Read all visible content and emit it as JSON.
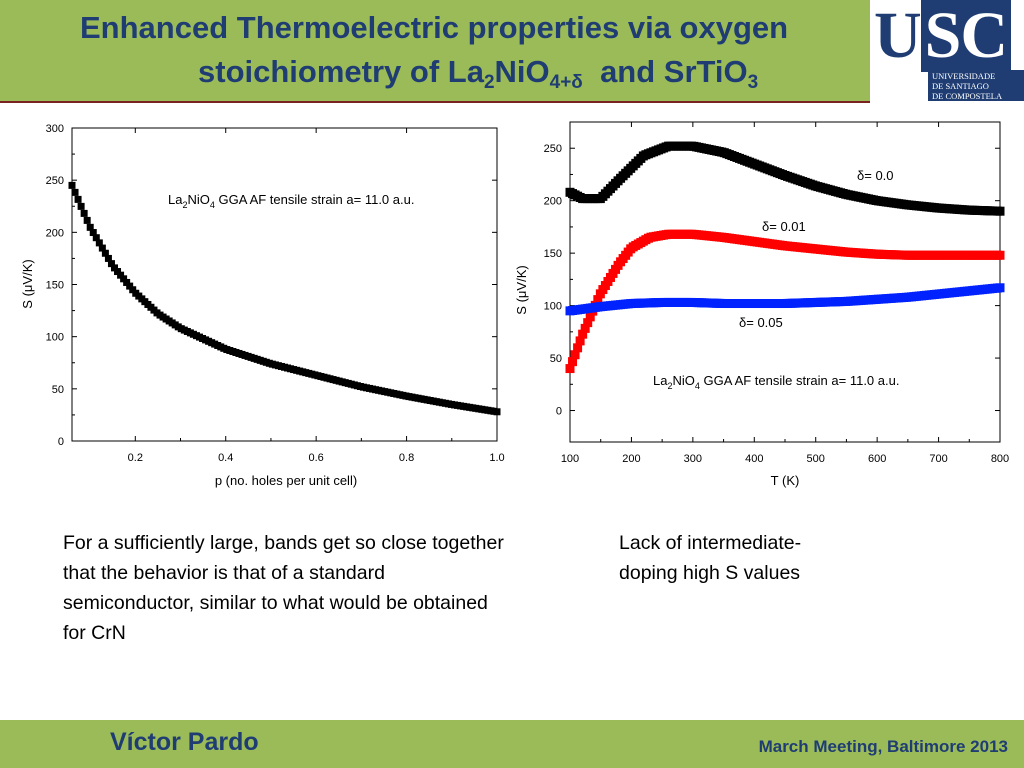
{
  "slide": {
    "title_line1": "Enhanced Thermoelectric properties via oxygen",
    "title_line2_pre": "stoichiometry of La",
    "title_sub2": "2",
    "title_mid": "NiO",
    "title_sub_delta": "4+δ",
    "title_and": "and SrTiO",
    "title_sub3": "3",
    "note_left": "For a sufficiently large, bands get so close together that the behavior is that of a standard semiconductor, similar to what would be obtained for CrN",
    "note_right": "Lack of intermediate-doping high S values",
    "author": "Víctor Pardo",
    "venue": "March Meeting, Baltimore 2013"
  },
  "logo": {
    "letters_u": "U",
    "letters_sc": "SC",
    "line1": "UNIVERSIDADE",
    "line2": "DE SANTIAGO",
    "line3": "DE COMPOSTELA"
  },
  "colors": {
    "header_bg": "#9bbb59",
    "title_blue": "#1f3d73",
    "series_black": "#000000",
    "series_red": "#ff0000",
    "series_blue": "#0022ff"
  },
  "chart_data": [
    {
      "type": "scatter",
      "xlabel": "p (no. holes per unit cell)",
      "ylabel": "S (μV/K)",
      "xlim": [
        0.06,
        1.0
      ],
      "ylim": [
        0,
        300
      ],
      "xticks": [
        0.2,
        0.4,
        0.6,
        0.8,
        1.0
      ],
      "xtick_labels": [
        "0.2",
        "0.4",
        "0.6",
        "0.8",
        "1.0"
      ],
      "yticks": [
        0,
        50,
        100,
        150,
        200,
        250,
        300
      ],
      "ytick_labels": [
        "0",
        "50",
        "100",
        "150",
        "200",
        "250",
        "300"
      ],
      "annotation": {
        "pre": "La",
        "s1": "2",
        "mid": "NiO",
        "s2": "4",
        "post": " GGA AF tensile strain a= 11.0 a.u."
      },
      "series": [
        {
          "color": "#000000",
          "x": [
            0.06,
            0.1,
            0.15,
            0.2,
            0.25,
            0.3,
            0.4,
            0.5,
            0.6,
            0.7,
            0.8,
            0.9,
            1.0
          ],
          "y": [
            245,
            205,
            168,
            142,
            122,
            108,
            88,
            74,
            63,
            52,
            43,
            35,
            28
          ]
        }
      ]
    },
    {
      "type": "scatter",
      "xlabel": "T (K)",
      "ylabel": "S (μV/K)",
      "xlim": [
        100,
        800
      ],
      "ylim": [
        -30,
        275
      ],
      "xticks": [
        100,
        200,
        300,
        400,
        500,
        600,
        700,
        800
      ],
      "xtick_labels": [
        "100",
        "200",
        "300",
        "400",
        "500",
        "600",
        "700",
        "800"
      ],
      "yticks": [
        0,
        50,
        100,
        150,
        200,
        250
      ],
      "ytick_labels": [
        "0",
        "50",
        "100",
        "150",
        "200",
        "250"
      ],
      "annotation": {
        "pre": "La",
        "s1": "2",
        "mid": "NiO",
        "s2": "4",
        "post": " GGA AF tensile strain a= 11.0 a.u."
      },
      "series": [
        {
          "name": "δ= 0.0",
          "color": "#000000",
          "x": [
            100,
            120,
            150,
            180,
            220,
            260,
            300,
            350,
            400,
            450,
            500,
            550,
            600,
            650,
            700,
            750,
            800
          ],
          "y": [
            208,
            202,
            202,
            220,
            243,
            252,
            252,
            246,
            235,
            224,
            214,
            206,
            200,
            196,
            193,
            191,
            190
          ]
        },
        {
          "name": "δ= 0.01",
          "color": "#ff0000",
          "x": [
            100,
            120,
            150,
            180,
            200,
            230,
            260,
            300,
            350,
            400,
            450,
            500,
            550,
            600,
            650,
            700,
            750,
            800
          ],
          "y": [
            40,
            72,
            112,
            140,
            155,
            165,
            168,
            168,
            165,
            161,
            157,
            154,
            151,
            149,
            148,
            148,
            148,
            148
          ]
        },
        {
          "name": "δ= 0.05",
          "color": "#0022ff",
          "x": [
            100,
            150,
            200,
            250,
            300,
            350,
            400,
            450,
            500,
            550,
            600,
            650,
            700,
            750,
            800
          ],
          "y": [
            95,
            99,
            102,
            103,
            103,
            102,
            102,
            102,
            103,
            104,
            106,
            108,
            111,
            114,
            117
          ]
        }
      ]
    }
  ]
}
